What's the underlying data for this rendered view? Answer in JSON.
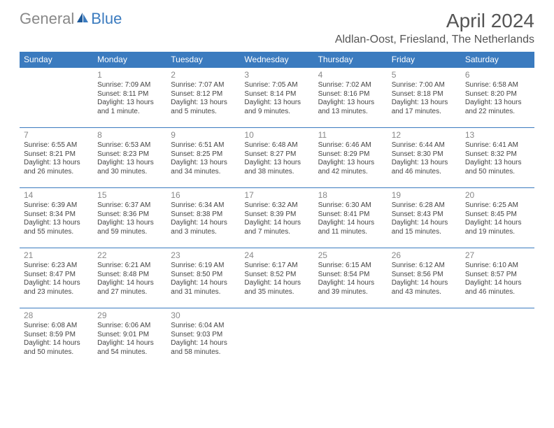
{
  "logo": {
    "text1": "General",
    "text2": "Blue"
  },
  "title": "April 2024",
  "location": "Aldlan-Oost, Friesland, The Netherlands",
  "colors": {
    "header_bg": "#3b7bbf",
    "header_text": "#ffffff",
    "border": "#3b7bbf",
    "text": "#444444",
    "daynum": "#888888",
    "title_color": "#555555"
  },
  "weekdays": [
    "Sunday",
    "Monday",
    "Tuesday",
    "Wednesday",
    "Thursday",
    "Friday",
    "Saturday"
  ],
  "weeks": [
    [
      null,
      {
        "d": "1",
        "sr": "Sunrise: 7:09 AM",
        "ss": "Sunset: 8:11 PM",
        "dl1": "Daylight: 13 hours",
        "dl2": "and 1 minute."
      },
      {
        "d": "2",
        "sr": "Sunrise: 7:07 AM",
        "ss": "Sunset: 8:12 PM",
        "dl1": "Daylight: 13 hours",
        "dl2": "and 5 minutes."
      },
      {
        "d": "3",
        "sr": "Sunrise: 7:05 AM",
        "ss": "Sunset: 8:14 PM",
        "dl1": "Daylight: 13 hours",
        "dl2": "and 9 minutes."
      },
      {
        "d": "4",
        "sr": "Sunrise: 7:02 AM",
        "ss": "Sunset: 8:16 PM",
        "dl1": "Daylight: 13 hours",
        "dl2": "and 13 minutes."
      },
      {
        "d": "5",
        "sr": "Sunrise: 7:00 AM",
        "ss": "Sunset: 8:18 PM",
        "dl1": "Daylight: 13 hours",
        "dl2": "and 17 minutes."
      },
      {
        "d": "6",
        "sr": "Sunrise: 6:58 AM",
        "ss": "Sunset: 8:20 PM",
        "dl1": "Daylight: 13 hours",
        "dl2": "and 22 minutes."
      }
    ],
    [
      {
        "d": "7",
        "sr": "Sunrise: 6:55 AM",
        "ss": "Sunset: 8:21 PM",
        "dl1": "Daylight: 13 hours",
        "dl2": "and 26 minutes."
      },
      {
        "d": "8",
        "sr": "Sunrise: 6:53 AM",
        "ss": "Sunset: 8:23 PM",
        "dl1": "Daylight: 13 hours",
        "dl2": "and 30 minutes."
      },
      {
        "d": "9",
        "sr": "Sunrise: 6:51 AM",
        "ss": "Sunset: 8:25 PM",
        "dl1": "Daylight: 13 hours",
        "dl2": "and 34 minutes."
      },
      {
        "d": "10",
        "sr": "Sunrise: 6:48 AM",
        "ss": "Sunset: 8:27 PM",
        "dl1": "Daylight: 13 hours",
        "dl2": "and 38 minutes."
      },
      {
        "d": "11",
        "sr": "Sunrise: 6:46 AM",
        "ss": "Sunset: 8:29 PM",
        "dl1": "Daylight: 13 hours",
        "dl2": "and 42 minutes."
      },
      {
        "d": "12",
        "sr": "Sunrise: 6:44 AM",
        "ss": "Sunset: 8:30 PM",
        "dl1": "Daylight: 13 hours",
        "dl2": "and 46 minutes."
      },
      {
        "d": "13",
        "sr": "Sunrise: 6:41 AM",
        "ss": "Sunset: 8:32 PM",
        "dl1": "Daylight: 13 hours",
        "dl2": "and 50 minutes."
      }
    ],
    [
      {
        "d": "14",
        "sr": "Sunrise: 6:39 AM",
        "ss": "Sunset: 8:34 PM",
        "dl1": "Daylight: 13 hours",
        "dl2": "and 55 minutes."
      },
      {
        "d": "15",
        "sr": "Sunrise: 6:37 AM",
        "ss": "Sunset: 8:36 PM",
        "dl1": "Daylight: 13 hours",
        "dl2": "and 59 minutes."
      },
      {
        "d": "16",
        "sr": "Sunrise: 6:34 AM",
        "ss": "Sunset: 8:38 PM",
        "dl1": "Daylight: 14 hours",
        "dl2": "and 3 minutes."
      },
      {
        "d": "17",
        "sr": "Sunrise: 6:32 AM",
        "ss": "Sunset: 8:39 PM",
        "dl1": "Daylight: 14 hours",
        "dl2": "and 7 minutes."
      },
      {
        "d": "18",
        "sr": "Sunrise: 6:30 AM",
        "ss": "Sunset: 8:41 PM",
        "dl1": "Daylight: 14 hours",
        "dl2": "and 11 minutes."
      },
      {
        "d": "19",
        "sr": "Sunrise: 6:28 AM",
        "ss": "Sunset: 8:43 PM",
        "dl1": "Daylight: 14 hours",
        "dl2": "and 15 minutes."
      },
      {
        "d": "20",
        "sr": "Sunrise: 6:25 AM",
        "ss": "Sunset: 8:45 PM",
        "dl1": "Daylight: 14 hours",
        "dl2": "and 19 minutes."
      }
    ],
    [
      {
        "d": "21",
        "sr": "Sunrise: 6:23 AM",
        "ss": "Sunset: 8:47 PM",
        "dl1": "Daylight: 14 hours",
        "dl2": "and 23 minutes."
      },
      {
        "d": "22",
        "sr": "Sunrise: 6:21 AM",
        "ss": "Sunset: 8:48 PM",
        "dl1": "Daylight: 14 hours",
        "dl2": "and 27 minutes."
      },
      {
        "d": "23",
        "sr": "Sunrise: 6:19 AM",
        "ss": "Sunset: 8:50 PM",
        "dl1": "Daylight: 14 hours",
        "dl2": "and 31 minutes."
      },
      {
        "d": "24",
        "sr": "Sunrise: 6:17 AM",
        "ss": "Sunset: 8:52 PM",
        "dl1": "Daylight: 14 hours",
        "dl2": "and 35 minutes."
      },
      {
        "d": "25",
        "sr": "Sunrise: 6:15 AM",
        "ss": "Sunset: 8:54 PM",
        "dl1": "Daylight: 14 hours",
        "dl2": "and 39 minutes."
      },
      {
        "d": "26",
        "sr": "Sunrise: 6:12 AM",
        "ss": "Sunset: 8:56 PM",
        "dl1": "Daylight: 14 hours",
        "dl2": "and 43 minutes."
      },
      {
        "d": "27",
        "sr": "Sunrise: 6:10 AM",
        "ss": "Sunset: 8:57 PM",
        "dl1": "Daylight: 14 hours",
        "dl2": "and 46 minutes."
      }
    ],
    [
      {
        "d": "28",
        "sr": "Sunrise: 6:08 AM",
        "ss": "Sunset: 8:59 PM",
        "dl1": "Daylight: 14 hours",
        "dl2": "and 50 minutes."
      },
      {
        "d": "29",
        "sr": "Sunrise: 6:06 AM",
        "ss": "Sunset: 9:01 PM",
        "dl1": "Daylight: 14 hours",
        "dl2": "and 54 minutes."
      },
      {
        "d": "30",
        "sr": "Sunrise: 6:04 AM",
        "ss": "Sunset: 9:03 PM",
        "dl1": "Daylight: 14 hours",
        "dl2": "and 58 minutes."
      },
      null,
      null,
      null,
      null
    ]
  ]
}
